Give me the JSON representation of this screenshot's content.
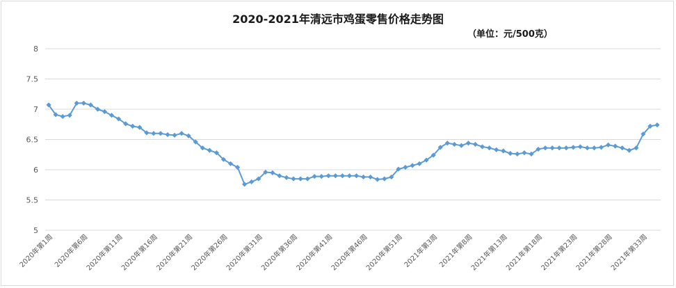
{
  "chart_data": {
    "type": "line",
    "title": "2020-2021年清远市鸡蛋零售价格走势图",
    "subtitle": "（单位：元/500克）",
    "ylim": [
      5,
      8
    ],
    "yticks": [
      "5",
      "5.5",
      "6",
      "6.5",
      "7",
      "7.5",
      "8"
    ],
    "grid": true,
    "line_color": "#5b9bd5",
    "x_tick_labels": [
      "2020年第1周",
      "2020年第6周",
      "2020年第11周",
      "2020年第16周",
      "2020年第21周",
      "2020年第26周",
      "2020年第31周",
      "2020年第36周",
      "2020年第41周",
      "2020年第46周",
      "2020年第51周",
      "2021年第3周",
      "2021年第8周",
      "2021年第13周",
      "2021年第18周",
      "2021年第23周",
      "2021年第28周",
      "2021年第33周"
    ],
    "tick_every": 5,
    "values": [
      7.07,
      6.91,
      6.88,
      6.9,
      7.1,
      7.1,
      7.07,
      7.0,
      6.96,
      6.9,
      6.84,
      6.76,
      6.72,
      6.7,
      6.61,
      6.6,
      6.6,
      6.58,
      6.57,
      6.6,
      6.56,
      6.46,
      6.36,
      6.32,
      6.28,
      6.17,
      6.1,
      6.04,
      5.76,
      5.8,
      5.85,
      5.96,
      5.95,
      5.9,
      5.87,
      5.85,
      5.85,
      5.85,
      5.89,
      5.89,
      5.9,
      5.9,
      5.9,
      5.9,
      5.9,
      5.88,
      5.88,
      5.84,
      5.85,
      5.88,
      6.01,
      6.04,
      6.07,
      6.1,
      6.16,
      6.24,
      6.37,
      6.44,
      6.42,
      6.4,
      6.44,
      6.42,
      6.38,
      6.36,
      6.33,
      6.31,
      6.27,
      6.26,
      6.28,
      6.26,
      6.34,
      6.36,
      6.36,
      6.36,
      6.36,
      6.37,
      6.38,
      6.36,
      6.36,
      6.37,
      6.41,
      6.39,
      6.36,
      6.32,
      6.36,
      6.59,
      6.72,
      6.74
    ]
  }
}
